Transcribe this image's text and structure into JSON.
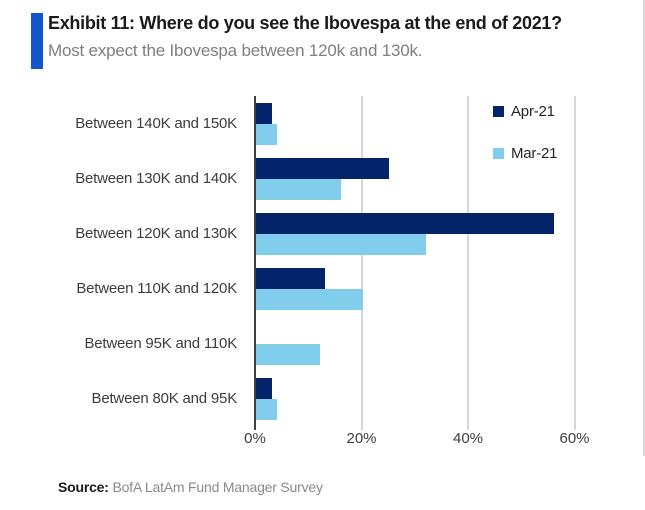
{
  "header": {
    "title": "Exhibit 11: Where do you see the Ibovespa at the end of 2021?",
    "subtitle": "Most expect the Ibovespa between 120k and 130k."
  },
  "chart_data": {
    "type": "bar",
    "orientation": "horizontal",
    "title": "Exhibit 11: Where do you see the Ibovespa at the end of 2021?",
    "value_unit": "percent of respondents",
    "categories": [
      "Between 140K and 150K",
      "Between 130K and 140K",
      "Between 120K and 130K",
      "Between 110K and 120K",
      "Between 95K and 110K",
      "Between 80K and 95K"
    ],
    "series": [
      {
        "name": "Apr-21",
        "color": "#032468",
        "values": [
          3,
          25,
          56,
          13,
          0,
          3
        ]
      },
      {
        "name": "Mar-21",
        "color": "#80cdec",
        "values": [
          4,
          16,
          32,
          20,
          12,
          4
        ]
      }
    ],
    "x_ticks": [
      {
        "value": 0,
        "label": "0%"
      },
      {
        "value": 20,
        "label": "20%"
      },
      {
        "value": 40,
        "label": "40%"
      },
      {
        "value": 60,
        "label": "60%"
      }
    ],
    "xlim": [
      0,
      73
    ],
    "grid": true,
    "legend_position": "top-right"
  },
  "footer": {
    "source_label": "Source:",
    "source_text": "BofA LatAm Fund Manager Survey"
  },
  "colors": {
    "accent_bar": "#1257d0",
    "navy": "#032468",
    "light_blue": "#80cdec",
    "gridline": "#d6d6d6",
    "axis_line": "#404040"
  }
}
